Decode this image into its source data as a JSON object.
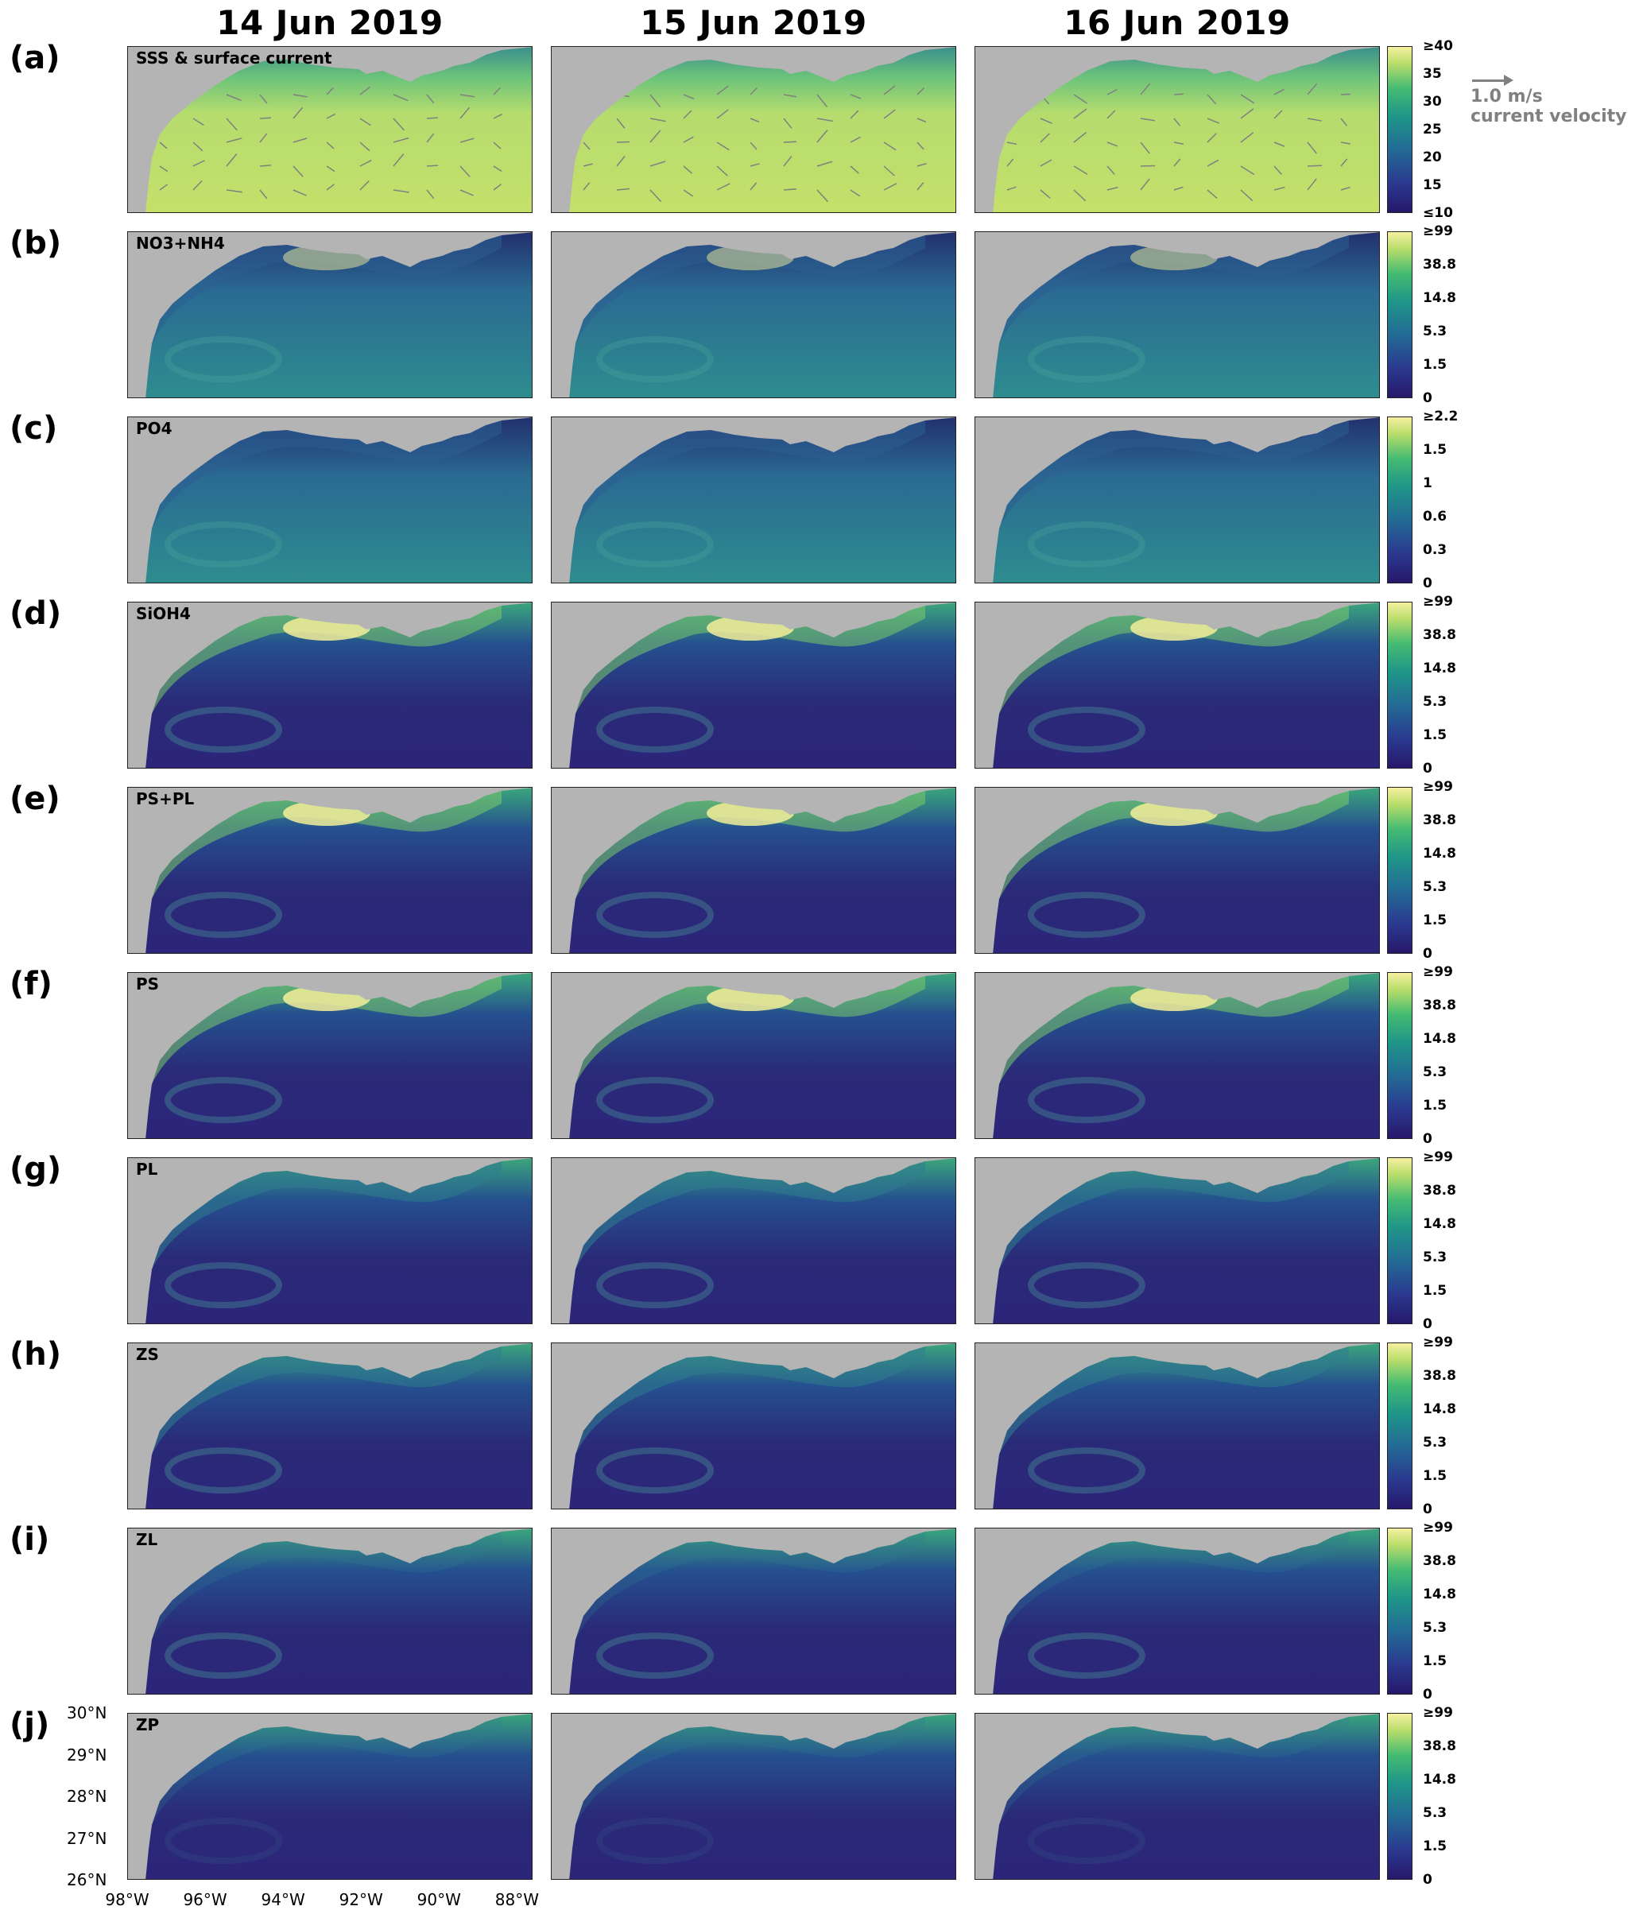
{
  "columns": [
    "14 Jun 2019",
    "15 Jun 2019",
    "16 Jun 2019"
  ],
  "rows": [
    {
      "label": "(a)",
      "variable": "SSS & surface current",
      "scale": "salinity",
      "ticks": [
        "≥40",
        "35",
        "30",
        "25",
        "20",
        "15",
        "≤10"
      ]
    },
    {
      "label": "(b)",
      "variable": "NO3+NH4",
      "scale": "bio",
      "ticks": [
        "≥99",
        "38.8",
        "14.8",
        "5.3",
        "1.5",
        "0"
      ]
    },
    {
      "label": "(c)",
      "variable": "PO4",
      "scale": "po4",
      "ticks": [
        "≥2.2",
        "1.5",
        "1",
        "0.6",
        "0.3",
        "0"
      ]
    },
    {
      "label": "(d)",
      "variable": "SiOH4",
      "scale": "bio",
      "ticks": [
        "≥99",
        "38.8",
        "14.8",
        "5.3",
        "1.5",
        "0"
      ]
    },
    {
      "label": "(e)",
      "variable": "PS+PL",
      "scale": "bio",
      "ticks": [
        "≥99",
        "38.8",
        "14.8",
        "5.3",
        "1.5",
        "0"
      ]
    },
    {
      "label": "(f)",
      "variable": "PS",
      "scale": "bio",
      "ticks": [
        "≥99",
        "38.8",
        "14.8",
        "5.3",
        "1.5",
        "0"
      ]
    },
    {
      "label": "(g)",
      "variable": "PL",
      "scale": "bio",
      "ticks": [
        "≥99",
        "38.8",
        "14.8",
        "5.3",
        "1.5",
        "0"
      ]
    },
    {
      "label": "(h)",
      "variable": "ZS",
      "scale": "bio",
      "ticks": [
        "≥99",
        "38.8",
        "14.8",
        "5.3",
        "1.5",
        "0"
      ]
    },
    {
      "label": "(i)",
      "variable": "ZL",
      "scale": "bio",
      "ticks": [
        "≥99",
        "38.8",
        "14.8",
        "5.3",
        "1.5",
        "0"
      ]
    },
    {
      "label": "(j)",
      "variable": "ZP",
      "scale": "bio",
      "ticks": [
        "≥99",
        "38.8",
        "14.8",
        "5.3",
        "1.5",
        "0"
      ]
    }
  ],
  "arrow_legend": {
    "value": "1.0 m/s",
    "label": "current velocity"
  },
  "lat_ticks": [
    "30°N",
    "29°N",
    "28°N",
    "27°N",
    "26°N"
  ],
  "lon_ticks": [
    "98°W",
    "96°W",
    "94°W",
    "92°W",
    "90°W",
    "88°W"
  ],
  "colors": {
    "land": "#b4b4b4",
    "low": "#27186b",
    "mid": "#1f9688",
    "high": "#f6f0a0",
    "arrow": "#808080"
  }
}
